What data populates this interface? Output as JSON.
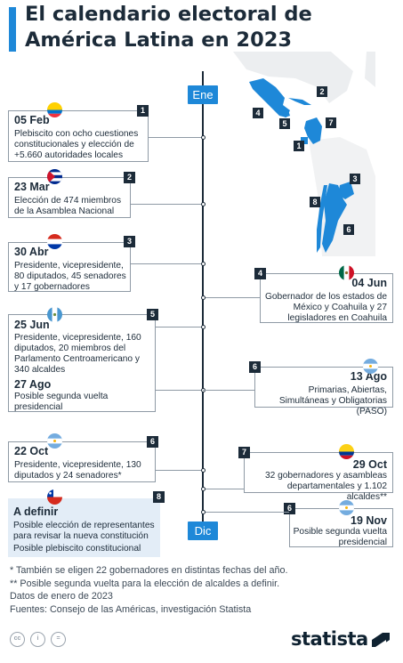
{
  "title": "El calendario electoral de América Latina en 2023",
  "months": {
    "start": "Ene",
    "end": "Dic"
  },
  "map_markers": [
    "2",
    "4",
    "5",
    "7",
    "1",
    "3",
    "8",
    "6"
  ],
  "events": [
    {
      "id": "feb05",
      "number": "1",
      "date": "05 Feb",
      "flag": "ecuador-flag",
      "description": "Plebiscito con ocho cuestiones constitucionales y elección de +5.660 autoridades locales"
    },
    {
      "id": "mar23",
      "number": "2",
      "date": "23 Mar",
      "flag": "cuba-flag",
      "description": "Elección de 474 miembros de la Asamblea Nacional"
    },
    {
      "id": "abr30",
      "number": "3",
      "date": "30 Abr",
      "flag": "paraguay-flag",
      "description": "Presidente, vicepresidente, 80 diputados, 45 senadores y 17 gobernadores"
    },
    {
      "id": "jun04",
      "number": "4",
      "date": "04 Jun",
      "flag": "mexico-flag",
      "description": "Gobernador de los estados de México y Coahuila y 27 legisladores en Coahuila"
    },
    {
      "id": "jun25",
      "number": "5",
      "date": "25 Jun",
      "flag": "guatemala-flag",
      "description": "Presidente, vicepresidente, 160 diputados, 20 miembros del Parlamento Centroamericano y 340 alcaldes",
      "second_date": "27 Ago",
      "second_description": "Posible segunda vuelta presidencial"
    },
    {
      "id": "ago13",
      "number": "6",
      "date": "13 Ago",
      "flag": "argentina-flag",
      "description": "Primarias, Abiertas, Simultáneas y Obligatorias (PASO)"
    },
    {
      "id": "oct22",
      "number": "6",
      "date": "22 Oct",
      "flag": "argentina-flag",
      "description": "Presidente, vicepresidente, 130 diputados y 24 senadores*"
    },
    {
      "id": "oct29",
      "number": "7",
      "date": "29 Oct",
      "flag": "colombia-flag",
      "description": "32 gobernadores y asambleas departamentales y 1.102 alcaldes**"
    },
    {
      "id": "tbd",
      "number": "8",
      "date": "A definir",
      "flag": "chile-flag",
      "description": "Posible elección de representantes para revisar la nueva constitución",
      "second_description": "Posible plebiscito constitucional"
    },
    {
      "id": "nov19",
      "number": "6",
      "date": "19 Nov",
      "flag": "argentina-flag",
      "description": "Posible segunda vuelta presidencial"
    }
  ],
  "footnotes": [
    "*   También se eligen 22 gobernadores en distintas fechas del año.",
    "** Posible segunda vuelta para la elección de alcaldes a definir.",
    "Datos de enero de 2023",
    "Fuentes: Consejo de las Américas, investigación Statista"
  ],
  "brand": "statista",
  "colors": {
    "accent": "#1e88d8",
    "dark": "#1c2b39",
    "shaded": "#e3edf7"
  }
}
